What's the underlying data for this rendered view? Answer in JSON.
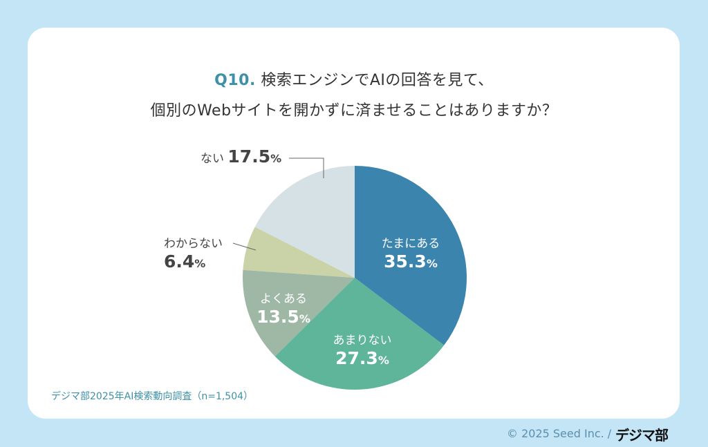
{
  "chart_data": {
    "type": "pie",
    "title_prefix": "Q10.",
    "title_line1": "検索エンジンでAIの回答を見て、",
    "title_line2": "個別のWebサイトを開かずに済ませることはありますか？",
    "start": "top",
    "direction": "clockwise",
    "unit": "%",
    "slices": [
      {
        "label": "たまにある",
        "value": "35.3",
        "color": "#3b84ad"
      },
      {
        "label": "あまりない",
        "value": "27.3",
        "color": "#5fb59a"
      },
      {
        "label": "よくある",
        "value": "13.5",
        "color": "#9fb8a6"
      },
      {
        "label": "わからない",
        "value": "6.4",
        "color": "#c9d3a7"
      },
      {
        "label": "ない",
        "value": "17.5",
        "color": "#d6e1e5"
      }
    ]
  },
  "source": "デジマ部2025年AI検索動向調査（n=1,504）",
  "footer": {
    "copyright": "© 2025 Seed Inc. /",
    "logo": "デジマ部"
  },
  "colors": {
    "background": "#c4e5f5",
    "accent": "#3d90a8"
  }
}
